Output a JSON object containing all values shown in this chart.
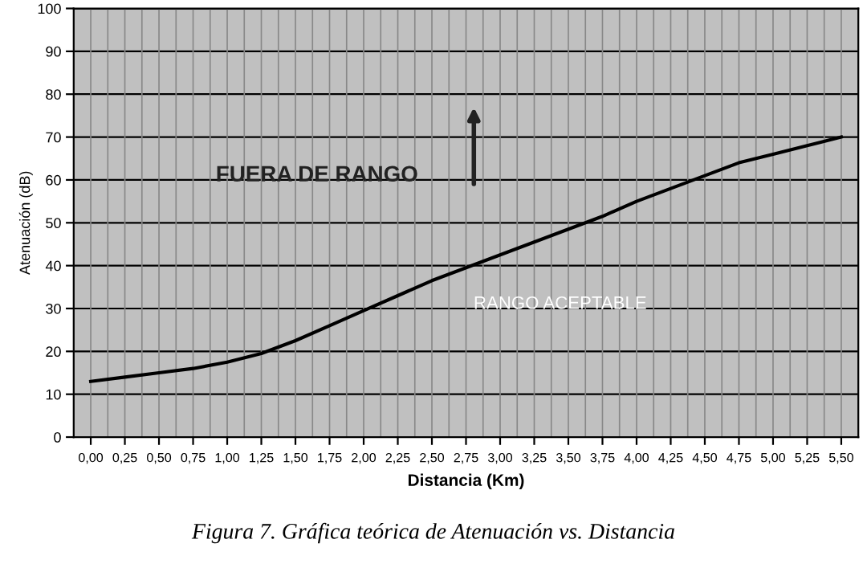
{
  "chart_data": {
    "type": "line",
    "xlabel": "Distancia (Km)",
    "ylabel": "Atenuación (dB)",
    "categories": [
      "0,00",
      "0,25",
      "0,50",
      "0,75",
      "1,00",
      "1,25",
      "1,50",
      "1,75",
      "2,00",
      "2,25",
      "2,50",
      "2,75",
      "3,00",
      "3,25",
      "3,50",
      "3,75",
      "4,00",
      "4,25",
      "4,50",
      "4,75",
      "5,00",
      "5,25",
      "5,50"
    ],
    "series": [
      {
        "color": "#000000",
        "values": [
          13,
          14,
          15,
          16,
          17.5,
          19.5,
          22.5,
          26,
          29.5,
          33,
          36.5,
          39.5,
          42.5,
          45.5,
          48.5,
          51.5,
          55,
          58,
          61,
          64,
          66,
          68,
          70
        ]
      }
    ],
    "ylim": [
      0,
      100
    ],
    "yticks": [
      0,
      10,
      20,
      30,
      40,
      50,
      60,
      70,
      80,
      90,
      100
    ],
    "grid": true,
    "line_style": "solid",
    "annotations": [
      "FUERA DE RANGO",
      "RANGO ACEPTABLE",
      "Figura 7. Gráfica teórica de Atenuación vs. Distancia"
    ]
  }
}
